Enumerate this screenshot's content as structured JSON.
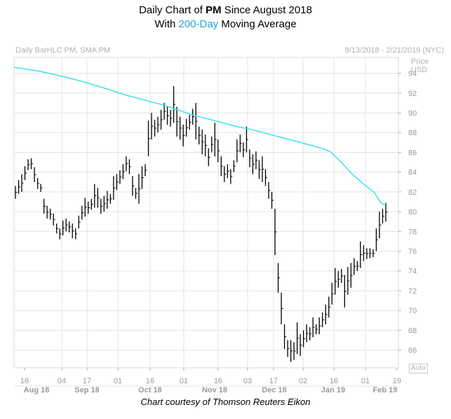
{
  "title": {
    "line1_prefix": "Daily Chart of ",
    "line1_ticker": "PM",
    "line1_suffix": " Since August 2018",
    "line2_prefix": "With ",
    "line2_highlight": "200-Day",
    "line2_suffix": " Moving Average"
  },
  "subtitle_left": "Daily BarHLC PM, SMA PM",
  "subtitle_right": "8/13/2018 - 2/21/2019 (NYC)",
  "price_label_1": "Price",
  "price_label_2": "USD",
  "auto_label": "Auto",
  "caption": "Chart courtesy of Thomson Reuters Eikon",
  "colors": {
    "bars": "#000000",
    "sma": "#33e0e8",
    "grid": "#e3e3e3",
    "axis_text": "#9a9a9a",
    "highlight": "#1fa8e0"
  },
  "chart_data": {
    "type": "bar",
    "subtype": "ohlc-hlc-with-sma",
    "ticker": "PM",
    "x_axis": {
      "day_ticks": [
        "16",
        "04",
        "17",
        "01",
        "16",
        "01",
        "16",
        "03",
        "17",
        "02",
        "16",
        "01",
        "19"
      ],
      "month_labels": [
        "Aug 18",
        "Sep 18",
        "Oct 18",
        "Nov 18",
        "Dec 18",
        "Jan 19",
        "Feb 19"
      ]
    },
    "y_axis": {
      "label": "Price USD",
      "ticks": [
        66,
        68,
        70,
        72,
        74,
        76,
        78,
        80,
        82,
        84,
        86,
        88,
        90,
        92,
        94
      ],
      "ylim": [
        64.2,
        95.6
      ]
    },
    "series": [
      {
        "name": "PM Daily BarHLC",
        "bars": [
          {
            "h": 82.6,
            "l": 81.3
          },
          {
            "h": 83.2,
            "l": 81.8
          },
          {
            "h": 83.8,
            "l": 82.0
          },
          {
            "h": 84.6,
            "l": 83.2
          },
          {
            "h": 85.3,
            "l": 84.2
          },
          {
            "h": 85.4,
            "l": 84.3
          },
          {
            "h": 84.5,
            "l": 83.0
          },
          {
            "h": 83.4,
            "l": 82.3
          },
          {
            "h": 82.8,
            "l": 82.0
          },
          {
            "h": 81.3,
            "l": 79.8
          },
          {
            "h": 80.6,
            "l": 79.3
          },
          {
            "h": 80.3,
            "l": 79.2
          },
          {
            "h": 79.8,
            "l": 78.6
          },
          {
            "h": 78.8,
            "l": 77.8
          },
          {
            "h": 78.3,
            "l": 77.2
          },
          {
            "h": 79.1,
            "l": 77.6
          },
          {
            "h": 79.3,
            "l": 78.0
          },
          {
            "h": 79.0,
            "l": 77.9
          },
          {
            "h": 78.8,
            "l": 77.3
          },
          {
            "h": 78.3,
            "l": 77.2
          },
          {
            "h": 79.6,
            "l": 78.3
          },
          {
            "h": 80.6,
            "l": 79.2
          },
          {
            "h": 81.4,
            "l": 79.5
          },
          {
            "h": 81.0,
            "l": 79.8
          },
          {
            "h": 81.3,
            "l": 80.2
          },
          {
            "h": 82.8,
            "l": 80.4
          },
          {
            "h": 82.4,
            "l": 80.4
          },
          {
            "h": 81.3,
            "l": 79.8
          },
          {
            "h": 81.6,
            "l": 80.0
          },
          {
            "h": 82.1,
            "l": 80.3
          },
          {
            "h": 81.8,
            "l": 80.8
          },
          {
            "h": 83.6,
            "l": 81.2
          },
          {
            "h": 83.8,
            "l": 82.2
          },
          {
            "h": 84.2,
            "l": 82.8
          },
          {
            "h": 84.8,
            "l": 83.3
          },
          {
            "h": 85.6,
            "l": 84.1
          },
          {
            "h": 85.3,
            "l": 83.8
          },
          {
            "h": 83.6,
            "l": 81.6
          },
          {
            "h": 82.4,
            "l": 81.3
          },
          {
            "h": 83.8,
            "l": 80.8
          },
          {
            "h": 84.6,
            "l": 82.3
          },
          {
            "h": 84.8,
            "l": 83.6
          },
          {
            "h": 89.2,
            "l": 85.6
          },
          {
            "h": 90.0,
            "l": 87.3
          },
          {
            "h": 89.3,
            "l": 87.6
          },
          {
            "h": 89.6,
            "l": 88.0
          },
          {
            "h": 90.3,
            "l": 88.3
          },
          {
            "h": 91.0,
            "l": 89.3
          },
          {
            "h": 90.6,
            "l": 88.8
          },
          {
            "h": 90.3,
            "l": 88.6
          },
          {
            "h": 92.7,
            "l": 89.0
          },
          {
            "h": 90.6,
            "l": 87.6
          },
          {
            "h": 89.6,
            "l": 87.3
          },
          {
            "h": 88.8,
            "l": 86.6
          },
          {
            "h": 89.4,
            "l": 87.6
          },
          {
            "h": 89.8,
            "l": 88.3
          },
          {
            "h": 90.4,
            "l": 88.8
          },
          {
            "h": 91.0,
            "l": 87.3
          },
          {
            "h": 88.6,
            "l": 86.8
          },
          {
            "h": 88.3,
            "l": 85.8
          },
          {
            "h": 87.8,
            "l": 85.6
          },
          {
            "h": 86.4,
            "l": 84.6
          },
          {
            "h": 87.6,
            "l": 86.0
          },
          {
            "h": 89.0,
            "l": 85.6
          },
          {
            "h": 87.3,
            "l": 85.0
          },
          {
            "h": 85.6,
            "l": 83.6
          },
          {
            "h": 84.6,
            "l": 83.0
          },
          {
            "h": 84.8,
            "l": 83.4
          },
          {
            "h": 84.3,
            "l": 82.8
          },
          {
            "h": 85.2,
            "l": 84.0
          },
          {
            "h": 87.3,
            "l": 85.0
          },
          {
            "h": 87.8,
            "l": 86.0
          },
          {
            "h": 87.0,
            "l": 85.5
          },
          {
            "h": 88.6,
            "l": 86.0
          },
          {
            "h": 86.3,
            "l": 84.5
          },
          {
            "h": 85.8,
            "l": 83.8
          },
          {
            "h": 86.1,
            "l": 84.3
          },
          {
            "h": 85.2,
            "l": 83.3
          },
          {
            "h": 85.6,
            "l": 83.0
          },
          {
            "h": 84.3,
            "l": 82.6
          },
          {
            "h": 83.0,
            "l": 81.3
          },
          {
            "h": 82.0,
            "l": 80.3
          },
          {
            "h": 80.3,
            "l": 75.6
          },
          {
            "h": 74.8,
            "l": 71.8
          },
          {
            "h": 71.8,
            "l": 68.6
          },
          {
            "h": 68.6,
            "l": 66.1
          },
          {
            "h": 67.0,
            "l": 65.3
          },
          {
            "h": 67.0,
            "l": 64.8
          },
          {
            "h": 66.8,
            "l": 65.0
          },
          {
            "h": 68.8,
            "l": 65.6
          },
          {
            "h": 67.6,
            "l": 65.4
          },
          {
            "h": 68.0,
            "l": 66.3
          },
          {
            "h": 68.6,
            "l": 66.8
          },
          {
            "h": 68.3,
            "l": 67.0
          },
          {
            "h": 69.3,
            "l": 67.3
          },
          {
            "h": 68.6,
            "l": 67.6
          },
          {
            "h": 69.3,
            "l": 67.6
          },
          {
            "h": 69.8,
            "l": 68.3
          },
          {
            "h": 70.6,
            "l": 68.6
          },
          {
            "h": 71.4,
            "l": 69.3
          },
          {
            "h": 72.8,
            "l": 70.6
          },
          {
            "h": 74.3,
            "l": 71.6
          },
          {
            "h": 74.0,
            "l": 72.3
          },
          {
            "h": 74.2,
            "l": 72.8
          },
          {
            "h": 73.6,
            "l": 70.3
          },
          {
            "h": 74.4,
            "l": 71.6
          },
          {
            "h": 74.8,
            "l": 72.3
          },
          {
            "h": 75.3,
            "l": 73.6
          },
          {
            "h": 75.0,
            "l": 74.0
          },
          {
            "h": 77.0,
            "l": 74.3
          },
          {
            "h": 76.6,
            "l": 75.0
          },
          {
            "h": 76.3,
            "l": 75.2
          },
          {
            "h": 76.3,
            "l": 75.3
          },
          {
            "h": 76.2,
            "l": 75.4
          },
          {
            "h": 78.3,
            "l": 76.0
          },
          {
            "h": 80.0,
            "l": 77.3
          },
          {
            "h": 80.3,
            "l": 78.8
          },
          {
            "h": 80.9,
            "l": 79.0
          }
        ]
      },
      {
        "name": "SMA 200",
        "values": [
          94.6,
          94.2,
          93.6,
          93.0,
          92.4,
          91.8,
          91.3,
          90.8,
          90.3,
          89.8,
          89.4,
          89.0,
          88.6,
          88.3,
          88.0,
          87.7,
          87.4,
          87.1,
          86.8,
          86.5,
          86.1,
          85.0,
          83.8,
          82.8,
          81.9,
          81.0,
          80.7,
          80.8
        ],
        "x_fraction": [
          0.0,
          0.07,
          0.14,
          0.2,
          0.25,
          0.3,
          0.35,
          0.4,
          0.44,
          0.48,
          0.52,
          0.56,
          0.6,
          0.64,
          0.67,
          0.7,
          0.73,
          0.76,
          0.79,
          0.82,
          0.85,
          0.88,
          0.91,
          0.94,
          0.97,
          0.985,
          0.995,
          1.0
        ]
      }
    ]
  }
}
